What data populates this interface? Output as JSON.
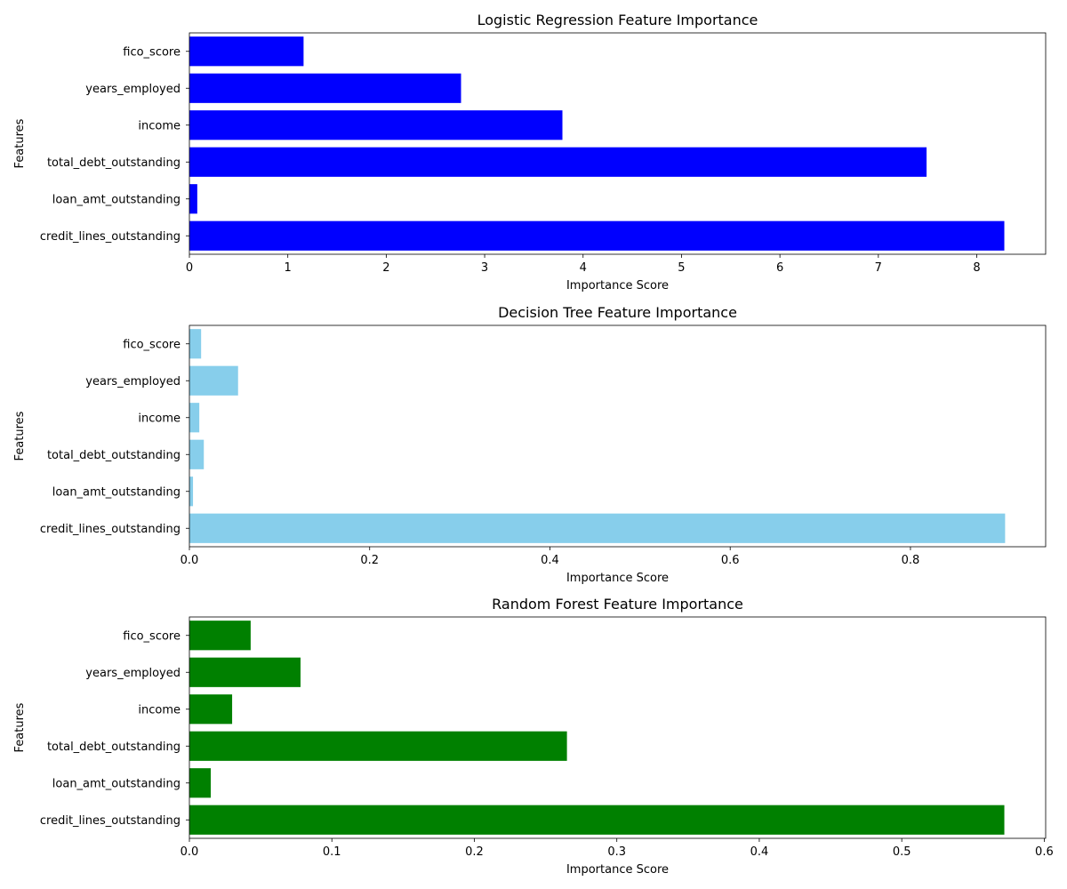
{
  "chart_data": [
    {
      "type": "bar",
      "orientation": "horizontal",
      "title": "Logistic Regression Feature Importance",
      "xlabel": "Importance Score",
      "ylabel": "Features",
      "categories": [
        "credit_lines_outstanding",
        "loan_amt_outstanding",
        "total_debt_outstanding",
        "income",
        "years_employed",
        "fico_score"
      ],
      "values": [
        8.28,
        0.08,
        7.49,
        3.79,
        2.76,
        1.16
      ],
      "xlim": [
        0,
        8.7
      ],
      "xticks": [
        0,
        1,
        2,
        3,
        4,
        5,
        6,
        7,
        8
      ],
      "xtick_labels": [
        "0",
        "1",
        "2",
        "3",
        "4",
        "5",
        "6",
        "7",
        "8"
      ],
      "color": "#0000ff"
    },
    {
      "type": "bar",
      "orientation": "horizontal",
      "title": "Decision Tree Feature Importance",
      "xlabel": "Importance Score",
      "ylabel": "Features",
      "categories": [
        "credit_lines_outstanding",
        "loan_amt_outstanding",
        "total_debt_outstanding",
        "income",
        "years_employed",
        "fico_score"
      ],
      "values": [
        0.905,
        0.004,
        0.016,
        0.011,
        0.054,
        0.013
      ],
      "xlim": [
        0,
        0.95
      ],
      "xticks": [
        0,
        0.2,
        0.4,
        0.6,
        0.8
      ],
      "xtick_labels": [
        "0.0",
        "0.2",
        "0.4",
        "0.6",
        "0.8"
      ],
      "color": "#87ceeb"
    },
    {
      "type": "bar",
      "orientation": "horizontal",
      "title": "Random Forest Feature Importance",
      "xlabel": "Importance Score",
      "ylabel": "Features",
      "categories": [
        "credit_lines_outstanding",
        "loan_amt_outstanding",
        "total_debt_outstanding",
        "income",
        "years_employed",
        "fico_score"
      ],
      "values": [
        0.572,
        0.015,
        0.265,
        0.03,
        0.078,
        0.043
      ],
      "xlim": [
        0,
        0.601
      ],
      "xticks": [
        0,
        0.1,
        0.2,
        0.3,
        0.4,
        0.5,
        0.6
      ],
      "xtick_labels": [
        "0.0",
        "0.1",
        "0.2",
        "0.3",
        "0.4",
        "0.5",
        "0.6"
      ],
      "color": "#008000"
    }
  ]
}
